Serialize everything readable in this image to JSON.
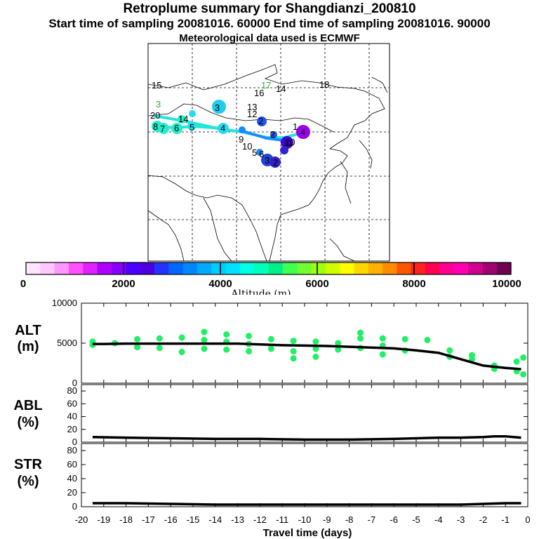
{
  "header": {
    "title": "Retroplume summary for Shangdianzi_200810",
    "sampling_line": "Start time of sampling 20081016. 60000     End time of sampling 20081016. 90000",
    "met_line": "Meteorological data used is ECMWF"
  },
  "map": {
    "labels": [
      "18",
      "17",
      "16",
      "14",
      "13",
      "3",
      "12",
      "2",
      "1",
      "4",
      "10",
      "9",
      "11",
      "5",
      "2",
      "6",
      "7",
      "8",
      "20",
      "15",
      "14",
      "5",
      "4",
      "6",
      "3",
      "10",
      "3",
      "2"
    ]
  },
  "colorbar": {
    "ticks": [
      "0",
      "2000",
      "4000",
      "6000",
      "8000",
      "10000"
    ],
    "label": "Altitude (m)",
    "colors": [
      "#ffe4ff",
      "#ffc8ff",
      "#ff96ff",
      "#ff50ff",
      "#e020ff",
      "#b000ff",
      "#8a00ff",
      "#4b00ff",
      "#4d00e0",
      "#2233ff",
      "#0066ff",
      "#0088ff",
      "#00aaff",
      "#00ccff",
      "#00e0ff",
      "#00ffe4",
      "#00ffbb",
      "#00f088",
      "#40ff50",
      "#70ff30",
      "#a0ff10",
      "#d0ff00",
      "#ffff00",
      "#ffd800",
      "#ffb000",
      "#ff8c00",
      "#ff5500",
      "#ff2020",
      "#ff0050",
      "#ff0090",
      "#ff00b0",
      "#d00090",
      "#a00070",
      "#700050"
    ]
  },
  "chart_data": [
    {
      "type": "line",
      "name": "ALT",
      "side_label": "ALT",
      "unit": "(m)",
      "xlabel": "Travel time (days)",
      "x": [
        -19.5,
        -19,
        -18,
        -17,
        -16,
        -15,
        -14,
        -13,
        -12,
        -11,
        -10,
        -9,
        -8,
        -7,
        -6,
        -5,
        -4,
        -3,
        -2,
        -1,
        -0.3
      ],
      "y": [
        4900,
        4900,
        4950,
        4950,
        4950,
        4950,
        4950,
        4950,
        4850,
        4750,
        4700,
        4650,
        4550,
        4450,
        4350,
        4100,
        3800,
        3000,
        2200,
        1900,
        1750
      ],
      "ylim": [
        0,
        10000
      ],
      "yticks": [
        "0",
        "5000",
        "10000"
      ],
      "points": [
        [
          -19.5,
          5200
        ],
        [
          -19.5,
          4800
        ],
        [
          -18.5,
          5000
        ],
        [
          -17.5,
          5500
        ],
        [
          -17.5,
          4500
        ],
        [
          -16.5,
          5600
        ],
        [
          -16.5,
          4400
        ],
        [
          -15.5,
          5700
        ],
        [
          -15.5,
          3900
        ],
        [
          -14.5,
          6400
        ],
        [
          -14.5,
          5400
        ],
        [
          -14.5,
          4300
        ],
        [
          -13.5,
          6100
        ],
        [
          -13.5,
          5200
        ],
        [
          -13.5,
          4200
        ],
        [
          -12.5,
          5900
        ],
        [
          -12.5,
          4900
        ],
        [
          -12.5,
          4000
        ],
        [
          -11.5,
          5500
        ],
        [
          -11.5,
          4300
        ],
        [
          -10.5,
          5300
        ],
        [
          -10.5,
          4000
        ],
        [
          -10.5,
          3100
        ],
        [
          -9.5,
          5200
        ],
        [
          -9.5,
          4300
        ],
        [
          -9.5,
          3300
        ],
        [
          -8.5,
          5000
        ],
        [
          -8.5,
          4200
        ],
        [
          -7.5,
          6300
        ],
        [
          -7.5,
          5600
        ],
        [
          -7.5,
          4400
        ],
        [
          -6.5,
          5600
        ],
        [
          -6.5,
          4700
        ],
        [
          -6.5,
          3600
        ],
        [
          -5.5,
          5500
        ],
        [
          -5.5,
          4100
        ],
        [
          -4.5,
          5400
        ],
        [
          -3.5,
          4100
        ],
        [
          -3.5,
          3300
        ],
        [
          -2.5,
          3500
        ],
        [
          -2.5,
          3000
        ],
        [
          -1.5,
          2200
        ],
        [
          -1.5,
          1800
        ],
        [
          -0.5,
          2700
        ],
        [
          -0.5,
          1500
        ],
        [
          -0.2,
          3200
        ],
        [
          -0.2,
          1100
        ]
      ],
      "point_color": "#22ee66",
      "xticks": [
        "-20",
        "-19",
        "-18",
        "-17",
        "-16",
        "-15",
        "-14",
        "-13",
        "-12",
        "-11",
        "-10",
        "-9",
        "-8",
        "-7",
        "-6",
        "-5",
        "-4",
        "-3",
        "-2",
        "-1",
        "0"
      ]
    },
    {
      "type": "line",
      "name": "ABL",
      "side_label": "ABL",
      "unit": "(%)",
      "x": [
        -19.5,
        -18,
        -16,
        -14,
        -12,
        -10,
        -8,
        -6,
        -4,
        -3,
        -2,
        -1.5,
        -1,
        -0.3
      ],
      "y": [
        8,
        7,
        6,
        5,
        5,
        4,
        4,
        5,
        7,
        7,
        8,
        9,
        9,
        7
      ],
      "ylim": [
        0,
        90
      ],
      "yticks": [
        "0",
        "20",
        "40",
        "60",
        "80"
      ]
    },
    {
      "type": "line",
      "name": "STR",
      "side_label": "STR",
      "unit": "(%)",
      "x": [
        -19.5,
        -18,
        -16,
        -14,
        -12,
        -10,
        -8,
        -6,
        -4,
        -3,
        -2,
        -1,
        -0.3
      ],
      "y": [
        5,
        5,
        4,
        3,
        3,
        3,
        3,
        3,
        3,
        3,
        4,
        5,
        5
      ],
      "ylim": [
        0,
        90
      ],
      "yticks": [
        "0",
        "20",
        "40",
        "60",
        "80"
      ]
    }
  ]
}
